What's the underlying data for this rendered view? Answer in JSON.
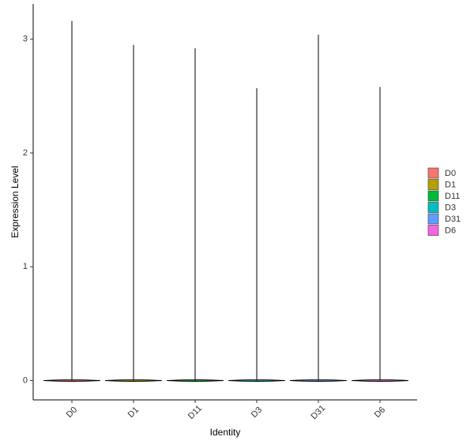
{
  "chart_data": {
    "type": "violin",
    "x_label": "Identity",
    "y_label": "Expression Level",
    "categories": [
      "D0",
      "D1",
      "D11",
      "D3",
      "D31",
      "D6"
    ],
    "min_values": [
      0,
      0,
      0,
      0,
      0,
      0
    ],
    "max_values": [
      3.16,
      2.95,
      2.92,
      2.57,
      3.04,
      2.58
    ],
    "colors": [
      "#F8766D",
      "#B79F00",
      "#00BA38",
      "#00BFC4",
      "#619CFF",
      "#F564E3"
    ],
    "legend_labels": [
      "D0",
      "D1",
      "D11",
      "D3",
      "D31",
      "D6"
    ],
    "ylim": [
      -0.17,
      3.31
    ],
    "yticks": [
      0,
      1,
      2,
      3
    ],
    "legend": "right"
  }
}
